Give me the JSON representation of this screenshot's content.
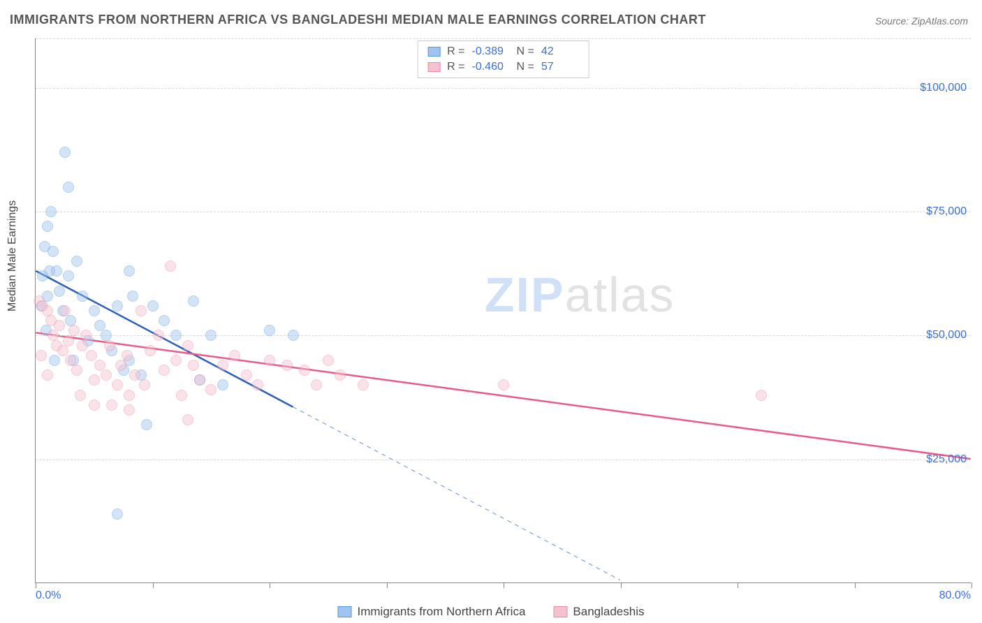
{
  "title": "IMMIGRANTS FROM NORTHERN AFRICA VS BANGLADESHI MEDIAN MALE EARNINGS CORRELATION CHART",
  "source_label": "Source: ",
  "source_value": "ZipAtlas.com",
  "watermark_a": "ZIP",
  "watermark_b": "atlas",
  "y_axis_title": "Median Male Earnings",
  "chart": {
    "type": "scatter",
    "xlim": [
      0,
      80
    ],
    "ylim": [
      0,
      110000
    ],
    "x_tick_step": 10,
    "y_gridlines": [
      25000,
      50000,
      75000,
      100000,
      110000
    ],
    "y_tick_labels": [
      "$25,000",
      "$50,000",
      "$75,000",
      "$100,000"
    ],
    "x_min_label": "0.0%",
    "x_max_label": "80.0%",
    "background_color": "#ffffff",
    "grid_color": "#d8d8d8",
    "axis_color": "#888888",
    "tick_label_color": "#3b6fd6",
    "marker_radius": 8,
    "marker_opacity": 0.45,
    "series": [
      {
        "name": "Immigrants from Northern Africa",
        "color_fill": "#9ec4ef",
        "color_stroke": "#5a97d8",
        "R": "-0.389",
        "N": "42",
        "trend": {
          "x1": 0,
          "y1": 63000,
          "x2": 22,
          "y2": 35500,
          "extend_to_x": 50,
          "color": "#2b5fb5",
          "width": 2.5
        },
        "points": [
          [
            2.5,
            87000
          ],
          [
            2.8,
            80000
          ],
          [
            1.0,
            72000
          ],
          [
            1.3,
            75000
          ],
          [
            0.8,
            68000
          ],
          [
            1.5,
            67000
          ],
          [
            1.2,
            63000
          ],
          [
            0.6,
            62000
          ],
          [
            1.8,
            63000
          ],
          [
            1.0,
            58000
          ],
          [
            0.5,
            56000
          ],
          [
            2.0,
            59000
          ],
          [
            2.3,
            55000
          ],
          [
            2.8,
            62000
          ],
          [
            3.5,
            65000
          ],
          [
            3.0,
            53000
          ],
          [
            4.0,
            58000
          ],
          [
            4.5,
            49000
          ],
          [
            5.0,
            55000
          ],
          [
            5.5,
            52000
          ],
          [
            6.0,
            50000
          ],
          [
            6.5,
            47000
          ],
          [
            7.0,
            56000
          ],
          [
            7.5,
            43000
          ],
          [
            8.0,
            45000
          ],
          [
            8.3,
            58000
          ],
          [
            9.0,
            42000
          ],
          [
            10.0,
            56000
          ],
          [
            8.0,
            63000
          ],
          [
            11.0,
            53000
          ],
          [
            12.0,
            50000
          ],
          [
            13.5,
            57000
          ],
          [
            14.0,
            41000
          ],
          [
            15.0,
            50000
          ],
          [
            16.0,
            40000
          ],
          [
            20.0,
            51000
          ],
          [
            22.0,
            50000
          ],
          [
            9.5,
            32000
          ],
          [
            3.2,
            45000
          ],
          [
            7.0,
            14000
          ],
          [
            0.9,
            51000
          ],
          [
            1.6,
            45000
          ]
        ]
      },
      {
        "name": "Bangladeshis",
        "color_fill": "#f6c1cf",
        "color_stroke": "#e88aa5",
        "R": "-0.460",
        "N": "57",
        "trend": {
          "x1": 0,
          "y1": 50500,
          "x2": 80,
          "y2": 25000,
          "extend_to_x": 80,
          "color": "#e85a8a",
          "width": 2.5
        },
        "points": [
          [
            0.3,
            57000
          ],
          [
            0.6,
            56000
          ],
          [
            1.0,
            55000
          ],
          [
            1.3,
            53000
          ],
          [
            1.5,
            50000
          ],
          [
            1.8,
            48000
          ],
          [
            2.0,
            52000
          ],
          [
            2.3,
            47000
          ],
          [
            2.8,
            49000
          ],
          [
            3.0,
            45000
          ],
          [
            3.3,
            51000
          ],
          [
            3.5,
            43000
          ],
          [
            4.0,
            48000
          ],
          [
            4.3,
            50000
          ],
          [
            4.8,
            46000
          ],
          [
            5.0,
            41000
          ],
          [
            5.5,
            44000
          ],
          [
            6.0,
            42000
          ],
          [
            6.3,
            48000
          ],
          [
            7.0,
            40000
          ],
          [
            7.3,
            44000
          ],
          [
            7.8,
            46000
          ],
          [
            8.0,
            38000
          ],
          [
            8.5,
            42000
          ],
          [
            9.0,
            55000
          ],
          [
            9.3,
            40000
          ],
          [
            9.8,
            47000
          ],
          [
            10.5,
            50000
          ],
          [
            11.0,
            43000
          ],
          [
            11.5,
            64000
          ],
          [
            12.0,
            45000
          ],
          [
            12.5,
            38000
          ],
          [
            13.0,
            48000
          ],
          [
            13.5,
            44000
          ],
          [
            14.0,
            41000
          ],
          [
            15.0,
            39000
          ],
          [
            16.0,
            44000
          ],
          [
            17.0,
            46000
          ],
          [
            18.0,
            42000
          ],
          [
            19.0,
            40000
          ],
          [
            20.0,
            45000
          ],
          [
            21.5,
            44000
          ],
          [
            23.0,
            43000
          ],
          [
            24.0,
            40000
          ],
          [
            25.0,
            45000
          ],
          [
            26.0,
            42000
          ],
          [
            28.0,
            40000
          ],
          [
            40.0,
            40000
          ],
          [
            62.0,
            38000
          ],
          [
            13.0,
            33000
          ],
          [
            5.0,
            36000
          ],
          [
            6.5,
            36000
          ],
          [
            8.0,
            35000
          ],
          [
            2.5,
            55000
          ],
          [
            0.5,
            46000
          ],
          [
            1.0,
            42000
          ],
          [
            3.8,
            38000
          ]
        ]
      }
    ]
  },
  "stats_labels": {
    "R": "R =",
    "N": "N ="
  },
  "legend": {
    "series_a": "Immigrants from Northern Africa",
    "series_b": "Bangladeshis"
  }
}
